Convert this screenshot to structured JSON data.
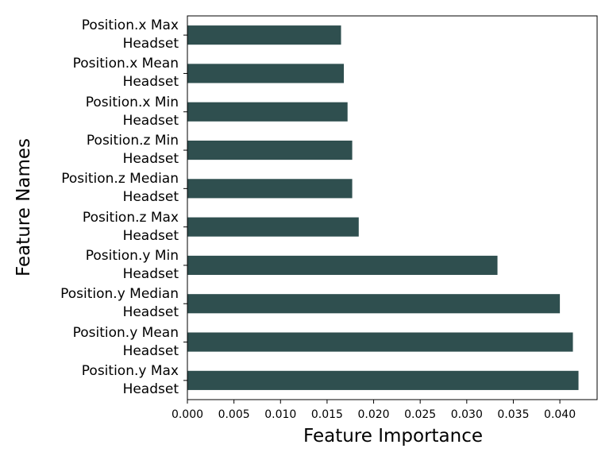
{
  "chart_data": {
    "type": "barh",
    "xlabel": "Feature Importance",
    "ylabel": "Feature Names",
    "categories": [
      "Position.y Max\nHeadset",
      "Position.y Mean\nHeadset",
      "Position.y Median\nHeadset",
      "Position.y Min\nHeadset",
      "Position.z Max\nHeadset",
      "Position.z Median\nHeadset",
      "Position.z Min\nHeadset",
      "Position.x Min\nHeadset",
      "Position.x Mean\nHeadset",
      "Position.x Max\nHeadset"
    ],
    "values": [
      0.042,
      0.0414,
      0.04,
      0.0333,
      0.0184,
      0.0177,
      0.0177,
      0.0172,
      0.0168,
      0.0165
    ],
    "color": "#2f4f4f",
    "xlim": [
      0,
      0.044
    ],
    "xticks": [
      {
        "value": 0,
        "label": "0.000"
      },
      {
        "value": 0.005,
        "label": "0.005"
      },
      {
        "value": 0.01,
        "label": "0.010"
      },
      {
        "value": 0.015,
        "label": "0.015"
      },
      {
        "value": 0.02,
        "label": "0.020"
      },
      {
        "value": 0.025,
        "label": "0.025"
      },
      {
        "value": 0.03,
        "label": "0.030"
      },
      {
        "value": 0.035,
        "label": "0.035"
      },
      {
        "value": 0.04,
        "label": "0.040"
      }
    ],
    "grid": false
  }
}
